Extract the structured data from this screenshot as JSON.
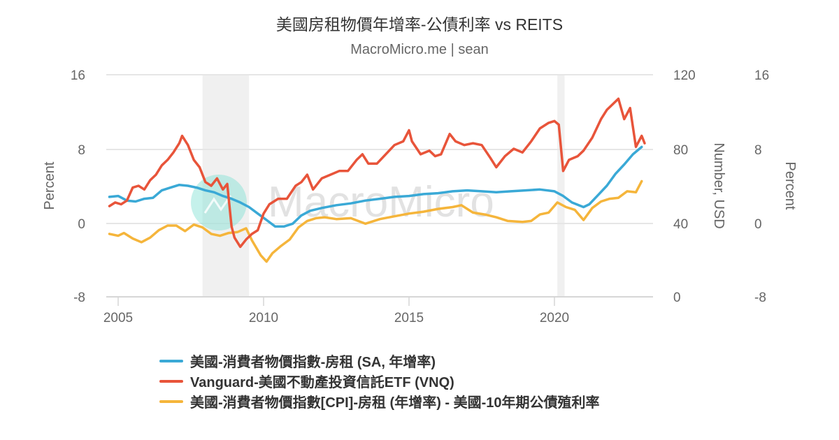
{
  "header": {
    "title": "美國房租物價年增率-公債利率 vs REITS",
    "subtitle": "MacroMicro.me | sean"
  },
  "watermark": {
    "text": "MacroMicro"
  },
  "axes": {
    "left": {
      "title": "Percent",
      "ticks": [
        "16",
        "8",
        "0",
        "-8"
      ]
    },
    "right1": {
      "title": "Number, USD",
      "ticks": [
        "120",
        "80",
        "40",
        "0"
      ]
    },
    "right2": {
      "title": "Percent",
      "ticks": [
        "16",
        "8",
        "0",
        "-8"
      ]
    },
    "x": {
      "ticks": [
        "2005",
        "2010",
        "2015",
        "2020"
      ]
    }
  },
  "legend": {
    "items": [
      {
        "label": "美國-消費者物價指數-房租 (SA, 年增率)",
        "color": "#3aa9d6"
      },
      {
        "label": "Vanguard-美國不動產投資信託ETF (VNQ)",
        "color": "#e8543a"
      },
      {
        "label": "美國-消費者物價指數[CPI]-房租 (年增率) - 美國-10年期公債殖利率",
        "color": "#f5b53b"
      }
    ]
  },
  "chart_data": {
    "type": "line",
    "title": "美國房租物價年增率-公債利率 vs REITS",
    "subtitle": "MacroMicro.me | sean",
    "xlabel": "",
    "x_range": [
      2004.7,
      2023.1
    ],
    "x_ticks": [
      2005,
      2010,
      2015,
      2020
    ],
    "grid": true,
    "legend_position": "bottom",
    "recession_bands": [
      [
        2007.9,
        2009.5
      ],
      [
        2020.1,
        2020.35
      ]
    ],
    "y_axes": [
      {
        "id": "left",
        "label": "Percent",
        "ylim": [
          -8,
          16
        ],
        "ticks": [
          -8,
          0,
          8,
          16
        ]
      },
      {
        "id": "right_usd",
        "label": "Number, USD",
        "ylim": [
          0,
          120
        ],
        "ticks": [
          0,
          40,
          80,
          120
        ]
      },
      {
        "id": "right_pct",
        "label": "Percent",
        "ylim": [
          -8,
          16
        ],
        "ticks": [
          -8,
          0,
          8,
          16
        ]
      }
    ],
    "series": [
      {
        "name": "美國-消費者物價指數-房租 (SA, 年增率)",
        "axis": "left",
        "color": "#3aa9d6",
        "x": [
          2004.7,
          2005.0,
          2005.3,
          2005.6,
          2005.9,
          2006.2,
          2006.5,
          2006.8,
          2007.1,
          2007.4,
          2007.7,
          2008.0,
          2008.3,
          2008.6,
          2008.9,
          2009.2,
          2009.5,
          2009.8,
          2010.1,
          2010.4,
          2010.7,
          2011.0,
          2011.3,
          2011.6,
          2012.0,
          2012.5,
          2013.0,
          2013.5,
          2014.0,
          2014.5,
          2015.0,
          2015.5,
          2016.0,
          2016.5,
          2017.0,
          2017.5,
          2018.0,
          2018.5,
          2019.0,
          2019.5,
          2020.0,
          2020.3,
          2020.6,
          2021.0,
          2021.2,
          2021.5,
          2021.8,
          2022.1,
          2022.4,
          2022.7,
          2023.0
        ],
        "values": [
          2.8,
          2.9,
          2.4,
          2.3,
          2.6,
          2.7,
          3.5,
          3.8,
          4.1,
          4.0,
          3.8,
          3.5,
          3.3,
          2.9,
          2.6,
          2.2,
          1.7,
          1.0,
          0.3,
          -0.4,
          -0.4,
          -0.1,
          0.8,
          1.3,
          1.6,
          1.9,
          2.1,
          2.4,
          2.6,
          2.8,
          2.9,
          3.1,
          3.2,
          3.4,
          3.5,
          3.4,
          3.3,
          3.4,
          3.5,
          3.6,
          3.4,
          2.9,
          2.2,
          1.7,
          2.0,
          3.0,
          4.0,
          5.3,
          6.3,
          7.4,
          8.2
        ]
      },
      {
        "name": "Vanguard-美國不動產投資信託ETF (VNQ)",
        "axis": "right_usd",
        "color": "#e8543a",
        "x": [
          2004.7,
          2004.9,
          2005.1,
          2005.3,
          2005.5,
          2005.7,
          2005.9,
          2006.1,
          2006.3,
          2006.5,
          2006.7,
          2006.9,
          2007.1,
          2007.2,
          2007.4,
          2007.6,
          2007.8,
          2008.0,
          2008.2,
          2008.4,
          2008.6,
          2008.75,
          2008.9,
          2009.0,
          2009.2,
          2009.4,
          2009.6,
          2009.8,
          2010.0,
          2010.2,
          2010.5,
          2010.8,
          2011.1,
          2011.3,
          2011.5,
          2011.7,
          2012.0,
          2012.3,
          2012.6,
          2012.9,
          2013.2,
          2013.4,
          2013.6,
          2013.9,
          2014.2,
          2014.5,
          2014.8,
          2015.0,
          2015.1,
          2015.4,
          2015.7,
          2015.9,
          2016.1,
          2016.4,
          2016.6,
          2016.9,
          2017.2,
          2017.5,
          2017.8,
          2018.0,
          2018.3,
          2018.6,
          2018.9,
          2019.2,
          2019.5,
          2019.8,
          2020.0,
          2020.15,
          2020.3,
          2020.5,
          2020.8,
          2021.0,
          2021.3,
          2021.6,
          2021.8,
          2022.0,
          2022.2,
          2022.4,
          2022.6,
          2022.8,
          2023.0,
          2023.1
        ],
        "values": [
          49,
          51,
          50,
          52,
          59,
          60,
          58,
          63,
          66,
          71,
          74,
          78,
          83,
          87,
          82,
          74,
          70,
          62,
          60,
          64,
          58,
          61,
          38,
          32,
          27,
          31,
          34,
          36,
          45,
          50,
          53,
          53,
          60,
          62,
          66,
          58,
          64,
          66,
          68,
          68,
          74,
          77,
          72,
          72,
          77,
          82,
          84,
          90,
          84,
          77,
          79,
          76,
          77,
          88,
          84,
          82,
          83,
          82,
          75,
          70,
          76,
          80,
          78,
          84,
          91,
          94,
          95,
          93,
          68,
          74,
          76,
          79,
          86,
          96,
          101,
          104,
          107,
          96,
          102,
          81,
          87,
          83
        ]
      },
      {
        "name": "美國-消費者物價指數[CPI]-房租 (年增率) - 美國-10年期公債殖利率",
        "axis": "right_pct",
        "color": "#f5b53b",
        "x": [
          2004.7,
          2005.0,
          2005.2,
          2005.5,
          2005.8,
          2006.1,
          2006.4,
          2006.7,
          2007.0,
          2007.3,
          2007.6,
          2007.9,
          2008.2,
          2008.5,
          2008.8,
          2009.1,
          2009.4,
          2009.6,
          2009.9,
          2010.1,
          2010.3,
          2010.6,
          2010.9,
          2011.2,
          2011.5,
          2011.8,
          2012.1,
          2012.5,
          2013.0,
          2013.5,
          2014.0,
          2014.5,
          2015.0,
          2015.5,
          2016.0,
          2016.5,
          2016.8,
          2017.2,
          2017.6,
          2018.0,
          2018.4,
          2018.9,
          2019.2,
          2019.5,
          2019.8,
          2020.1,
          2020.4,
          2020.7,
          2021.0,
          2021.3,
          2021.6,
          2021.9,
          2022.2,
          2022.5,
          2022.8,
          2023.0
        ],
        "values": [
          -1.2,
          -1.4,
          -1.1,
          -1.7,
          -2.1,
          -1.6,
          -0.8,
          -0.3,
          -0.3,
          -0.9,
          -0.2,
          -0.5,
          -1.2,
          -1.4,
          -1.1,
          -1.0,
          -0.6,
          -1.9,
          -3.5,
          -4.2,
          -3.3,
          -2.5,
          -1.8,
          -0.5,
          0.2,
          0.5,
          0.6,
          0.4,
          0.5,
          -0.1,
          0.4,
          0.7,
          1.0,
          1.2,
          1.5,
          1.7,
          1.9,
          1.1,
          0.9,
          0.6,
          0.2,
          0.1,
          0.2,
          0.9,
          1.1,
          2.2,
          1.7,
          1.4,
          0.3,
          1.6,
          2.3,
          2.6,
          2.7,
          3.4,
          3.3,
          4.5
        ]
      }
    ]
  }
}
